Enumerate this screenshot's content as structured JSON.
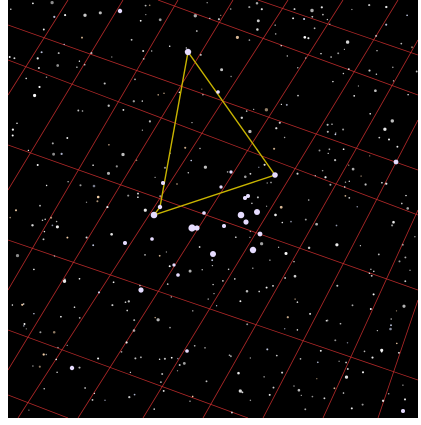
{
  "view": {
    "background_color": "#000000",
    "grid_color": "#d03030",
    "asterism_color": "#c8b400",
    "bright_star_color": "#e6dcff",
    "faint_star_color": "#ffffff"
  },
  "asterism": {
    "name": "",
    "vertex_count": 4
  }
}
